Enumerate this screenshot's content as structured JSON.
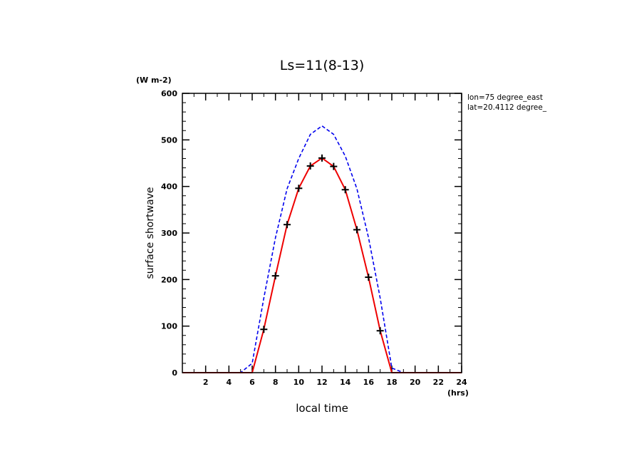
{
  "chart_data": {
    "type": "line",
    "title": "Ls=11(8-13)",
    "xlabel": "local time",
    "xunit": "(hrs)",
    "ylabel": "surface shortwave",
    "yunit": "(W m-2)",
    "xlim": [
      0,
      24
    ],
    "ylim": [
      0,
      600
    ],
    "xticks": [
      2,
      4,
      6,
      8,
      10,
      12,
      14,
      16,
      18,
      20,
      22,
      24
    ],
    "yticks": [
      0,
      100,
      200,
      300,
      400,
      500,
      600
    ],
    "annotations": [
      "lon=75 degree_east",
      "lat=20.4112 degree_"
    ],
    "grid": false,
    "series": [
      {
        "style": "dashed",
        "color": "#0000ee",
        "x": [
          0,
          1,
          2,
          3,
          4,
          5,
          6,
          7,
          8,
          9,
          10,
          11,
          12,
          13,
          14,
          15,
          16,
          17,
          18,
          19,
          20,
          21,
          22,
          23,
          24
        ],
        "values": [
          0,
          0,
          0,
          0,
          0,
          0,
          20,
          160,
          290,
          395,
          460,
          512,
          530,
          512,
          465,
          395,
          290,
          160,
          10,
          0,
          0,
          0,
          0,
          0,
          0
        ]
      },
      {
        "style": "solid",
        "color": "#ee0000",
        "x": [
          0,
          1,
          2,
          3,
          4,
          5,
          6,
          7,
          8,
          9,
          10,
          11,
          12,
          13,
          14,
          15,
          16,
          17,
          18,
          19,
          20,
          21,
          22,
          23,
          24
        ],
        "values": [
          0,
          0,
          0,
          0,
          0,
          0,
          0,
          93,
          208,
          318,
          396,
          444,
          461,
          443,
          393,
          307,
          205,
          90,
          0,
          0,
          0,
          0,
          0,
          0,
          0
        ]
      },
      {
        "style": "markers",
        "marker": "plus",
        "color": "#000000",
        "x": [
          7,
          8,
          9,
          10,
          11,
          12,
          13,
          14,
          15,
          16,
          17
        ],
        "values": [
          93,
          208,
          318,
          396,
          444,
          461,
          443,
          393,
          307,
          205,
          90
        ]
      }
    ]
  }
}
